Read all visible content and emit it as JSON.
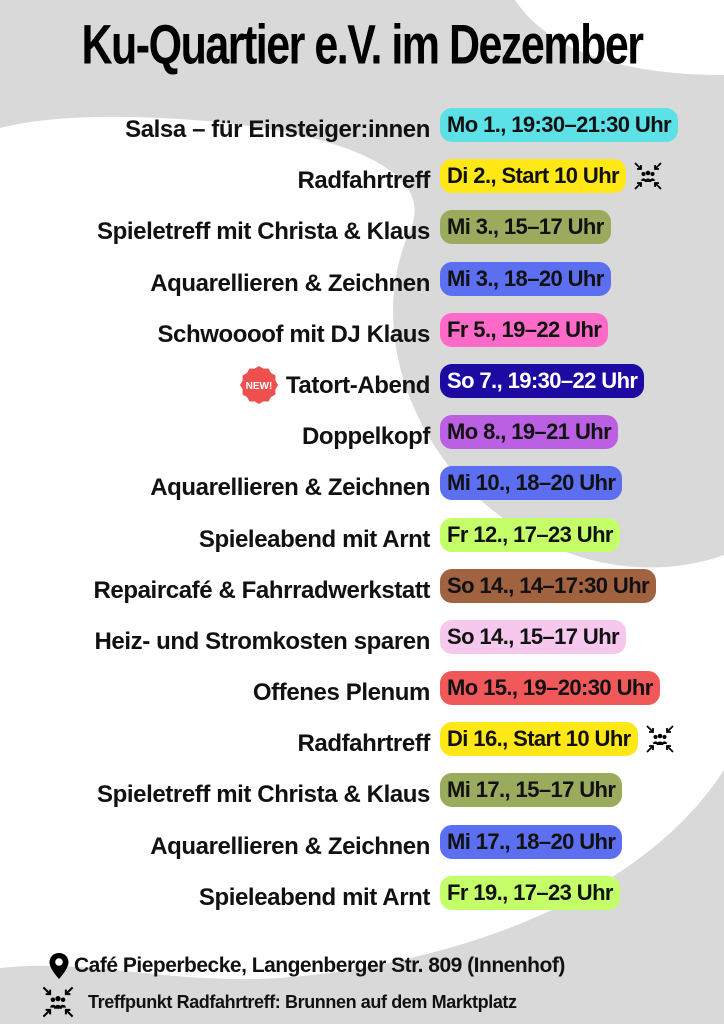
{
  "title": "Ku-Quartier e.V. im Dezember",
  "colors": {
    "background_gray": "#d9d9d9",
    "background_white": "#ffffff",
    "new_badge": "#ee4f4f"
  },
  "events": [
    {
      "name": "Salsa – für Einsteiger:innen",
      "date": "Mo 1., 19:30–21:30 Uhr",
      "color": "#5ce1e6",
      "text_color": "#111111",
      "meeting_point_icon": false,
      "new": false
    },
    {
      "name": "Radfahrtreff",
      "date": "Di 2., Start 10 Uhr",
      "color": "#ffe816",
      "text_color": "#111111",
      "meeting_point_icon": true,
      "new": false
    },
    {
      "name": "Spieletreff mit Christa & Klaus",
      "date": "Mi 3., 15–17 Uhr",
      "color": "#9aab5e",
      "text_color": "#111111",
      "meeting_point_icon": false,
      "new": false
    },
    {
      "name": "Aquarellieren & Zeichnen",
      "date": "Mi 3., 18–20 Uhr",
      "color": "#5b6ff0",
      "text_color": "#111111",
      "meeting_point_icon": false,
      "new": false
    },
    {
      "name": "Schwoooof mit DJ Klaus",
      "date": "Fr 5., 19–22 Uhr",
      "color": "#ff6ac8",
      "text_color": "#111111",
      "meeting_point_icon": false,
      "new": false
    },
    {
      "name": "Tatort-Abend",
      "date": "So 7., 19:30–22 Uhr",
      "color": "#1c0aa2",
      "text_color": "#ffffff",
      "meeting_point_icon": false,
      "new": true,
      "new_label": "NEW!"
    },
    {
      "name": "Doppelkopf",
      "date": "Mo 8., 19–21 Uhr",
      "color": "#bb5fe3",
      "text_color": "#111111",
      "meeting_point_icon": false,
      "new": false
    },
    {
      "name": "Aquarellieren & Zeichnen",
      "date": "Mi 10., 18–20 Uhr",
      "color": "#5b6ff0",
      "text_color": "#111111",
      "meeting_point_icon": false,
      "new": false
    },
    {
      "name": "Spieleabend mit Arnt",
      "date": "Fr 12., 17–23 Uhr",
      "color": "#c4ff6a",
      "text_color": "#111111",
      "meeting_point_icon": false,
      "new": false
    },
    {
      "name": "Repaircafé & Fahrradwerkstatt",
      "date": "So 14., 14–17:30 Uhr",
      "color": "#a0623f",
      "text_color": "#111111",
      "meeting_point_icon": false,
      "new": false
    },
    {
      "name": "Heiz- und Stromkosten sparen",
      "date": "So 14., 15–17 Uhr",
      "color": "#f6c8ee",
      "text_color": "#111111",
      "meeting_point_icon": false,
      "new": false
    },
    {
      "name": "Offenes Plenum",
      "date": "Mo 15., 19–20:30 Uhr",
      "color": "#f0585a",
      "text_color": "#111111",
      "meeting_point_icon": false,
      "new": false
    },
    {
      "name": "Radfahrtreff",
      "date": "Di 16., Start 10 Uhr",
      "color": "#ffe816",
      "text_color": "#111111",
      "meeting_point_icon": true,
      "new": false
    },
    {
      "name": "Spieletreff mit Christa & Klaus",
      "date": "Mi 17., 15–17 Uhr",
      "color": "#9aab5e",
      "text_color": "#111111",
      "meeting_point_icon": false,
      "new": false
    },
    {
      "name": "Aquarellieren & Zeichnen",
      "date": "Mi 17., 18–20 Uhr",
      "color": "#5b6ff0",
      "text_color": "#111111",
      "meeting_point_icon": false,
      "new": false
    },
    {
      "name": "Spieleabend mit Arnt",
      "date": "Fr 19., 17–23 Uhr",
      "color": "#c4ff6a",
      "text_color": "#111111",
      "meeting_point_icon": false,
      "new": false
    }
  ],
  "footer": {
    "location": "Café Pieperbecke, Langenberger Str. 809 (Innenhof)",
    "location_icon": "map-pin-icon",
    "meeting_point": "Treffpunkt Radfahrtreff: Brunnen auf dem Marktplatz",
    "meeting_point_icon": "meeting-point-icon"
  }
}
